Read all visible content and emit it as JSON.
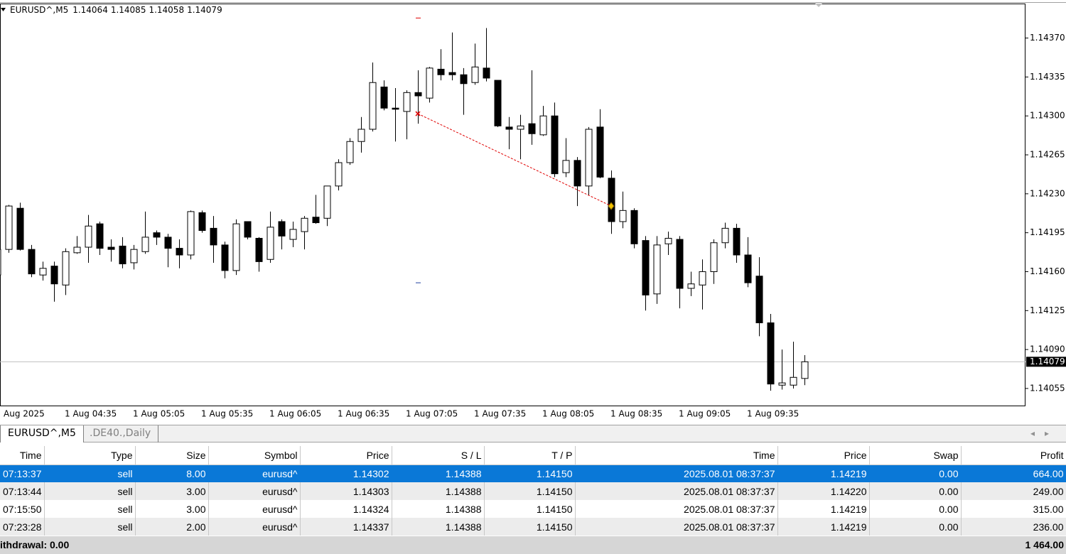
{
  "chart_data": {
    "type": "candlestick",
    "symbol": "EURUSD^,M5",
    "categories": [
      "Aug 2025",
      null,
      null,
      null,
      null,
      null,
      "1 Aug 04:35",
      null,
      null,
      null,
      null,
      null,
      "1 Aug 05:05",
      null,
      null,
      null,
      null,
      null,
      "1 Aug 05:35",
      null,
      null,
      null,
      null,
      null,
      "1 Aug 06:05",
      null,
      null,
      null,
      null,
      null,
      "1 Aug 06:35",
      null,
      null,
      null,
      null,
      null,
      "1 Aug 07:05",
      null,
      null,
      null,
      null,
      null,
      "1 Aug 07:35",
      null,
      null,
      null,
      null,
      null,
      "1 Aug 08:05",
      null,
      null,
      null,
      null,
      null,
      "1 Aug 08:35",
      null,
      null,
      null,
      null,
      null,
      "1 Aug 09:05",
      null,
      null,
      null,
      null,
      null,
      "1 Aug 09:35",
      null,
      null,
      null,
      null,
      null
    ],
    "open": [
      1.14157,
      1.1418,
      1.14217,
      1.1418,
      1.14157,
      1.14165,
      1.14148,
      1.14177,
      1.14182,
      1.14203,
      1.14182,
      1.14183,
      1.14168,
      1.14178,
      1.14195,
      1.14191,
      1.14181,
      1.14175,
      1.14213,
      1.14199,
      1.14184,
      1.14161,
      1.14205,
      1.1419,
      1.14171,
      1.14205,
      1.14189,
      1.14196,
      1.14209,
      1.14208,
      1.14237,
      1.14258,
      1.14277,
      1.14288,
      1.14326,
      1.14307,
      1.14304,
      1.14321,
      1.14316,
      1.14342,
      1.14339,
      1.14337,
      1.1433,
      1.14343,
      1.14332,
      1.1429,
      1.14288,
      1.14293,
      1.14283,
      1.143,
      1.14249,
      1.1426,
      1.14237,
      1.1429,
      1.14244,
      1.14205,
      1.14215,
      1.14188,
      1.1414,
      1.14185,
      1.14189,
      1.14145,
      1.14148,
      1.1416,
      1.14186,
      1.14199,
      1.14175,
      1.14156,
      1.14114,
      1.14058,
      1.14058,
      1.14064
    ],
    "high": [
      1.14182,
      1.1422,
      1.14222,
      1.14184,
      1.14169,
      1.14169,
      1.14181,
      1.14192,
      1.14211,
      1.14205,
      1.14189,
      1.14191,
      1.14184,
      1.14214,
      1.14197,
      1.14194,
      1.14189,
      1.14215,
      1.14215,
      1.1421,
      1.14187,
      1.14207,
      1.14205,
      1.14191,
      1.14214,
      1.14207,
      1.14205,
      1.1421,
      1.14229,
      1.14237,
      1.14261,
      1.1428,
      1.14299,
      1.14348,
      1.14332,
      1.14325,
      1.14323,
      1.14341,
      1.14344,
      1.1436,
      1.14375,
      1.14343,
      1.14365,
      1.14379,
      1.14332,
      1.14299,
      1.14301,
      1.14341,
      1.14309,
      1.14312,
      1.1428,
      1.14263,
      1.1429,
      1.14306,
      1.14251,
      1.14232,
      1.14217,
      1.14192,
      1.14192,
      1.14196,
      1.14192,
      1.1416,
      1.14171,
      1.14189,
      1.14204,
      1.14203,
      1.14191,
      1.14173,
      1.14122,
      1.1409,
      1.14097,
      1.14085
    ],
    "low": [
      1.14155,
      1.14177,
      1.14179,
      1.14155,
      1.14152,
      1.14133,
      1.14139,
      1.14176,
      1.14168,
      1.14175,
      1.14169,
      1.14163,
      1.14162,
      1.14176,
      1.14184,
      1.14164,
      1.14163,
      1.14171,
      1.14195,
      1.14168,
      1.14154,
      1.14157,
      1.14189,
      1.1416,
      1.14168,
      1.1418,
      1.14182,
      1.1418,
      1.14203,
      1.14201,
      1.14233,
      1.14256,
      1.14267,
      1.14286,
      1.14305,
      1.14277,
      1.14279,
      1.14293,
      1.14312,
      1.14332,
      1.14332,
      1.14301,
      1.14328,
      1.14331,
      1.1429,
      1.1427,
      1.14261,
      1.14274,
      1.14282,
      1.14245,
      1.14245,
      1.14219,
      1.14229,
      1.14244,
      1.14194,
      1.14199,
      1.14181,
      1.14125,
      1.14131,
      1.14175,
      1.14127,
      1.14138,
      1.14126,
      1.14149,
      1.14181,
      1.14168,
      1.14146,
      1.14102,
      1.14053,
      1.14054,
      1.14055,
      1.14058
    ],
    "close": [
      1.1418,
      1.14219,
      1.1418,
      1.14158,
      1.14163,
      1.14149,
      1.14178,
      1.14182,
      1.14201,
      1.14181,
      1.1418,
      1.14167,
      1.1418,
      1.14191,
      1.14191,
      1.14181,
      1.14175,
      1.14214,
      1.14197,
      1.14184,
      1.14161,
      1.14203,
      1.14191,
      1.14169,
      1.142,
      1.14192,
      1.14198,
      1.14208,
      1.14204,
      1.14237,
      1.14258,
      1.14277,
      1.14288,
      1.1433,
      1.14307,
      1.14306,
      1.14321,
      1.14318,
      1.14343,
      1.14337,
      1.14337,
      1.14329,
      1.14344,
      1.14334,
      1.14291,
      1.14288,
      1.14291,
      1.14284,
      1.143,
      1.14248,
      1.1426,
      1.14237,
      1.14288,
      1.14245,
      1.14205,
      1.14215,
      1.14185,
      1.14139,
      1.14184,
      1.1419,
      1.14145,
      1.14149,
      1.1416,
      1.14186,
      1.14199,
      1.14175,
      1.1415,
      1.14114,
      1.14059,
      1.1406,
      1.14065,
      1.14079
    ],
    "ylim": [
      1.14039,
      1.14401
    ],
    "yticks": [
      {
        "value": 1.1437,
        "label": "1.14370"
      },
      {
        "value": 1.14335,
        "label": "1.14335"
      },
      {
        "value": 1.143,
        "label": "1.14300"
      },
      {
        "value": 1.14265,
        "label": "1.14265"
      },
      {
        "value": 1.1423,
        "label": "1.14230"
      },
      {
        "value": 1.14195,
        "label": "1.14195"
      },
      {
        "value": 1.1416,
        "label": "1.14160"
      },
      {
        "value": 1.14125,
        "label": "1.14125"
      },
      {
        "value": 1.1409,
        "label": "1.14090"
      },
      {
        "value": 1.14055,
        "label": "1.14055"
      }
    ]
  },
  "tabs": [
    "EURUSD^,M5",
    ".DE40.,Daily"
  ],
  "table": {
    "header": [
      "Time",
      "Type",
      "Size",
      "Symbol",
      "Price",
      "S / L",
      "T / P",
      "Time",
      "Price",
      "Swap",
      "Profit"
    ],
    "rows": [
      [
        "07:13:37",
        "sell",
        "8.00",
        "eurusd^",
        "1.14302",
        "1.14388",
        "1.14150",
        "2025.08.01 08:37:37",
        "1.14219",
        "0.00",
        "664.00"
      ],
      [
        "07:13:44",
        "sell",
        "3.00",
        "eurusd^",
        "1.14303",
        "1.14388",
        "1.14150",
        "2025.08.01 08:37:37",
        "1.14220",
        "0.00",
        "249.00"
      ],
      [
        "07:15:50",
        "sell",
        "3.00",
        "eurusd^",
        "1.14324",
        "1.14388",
        "1.14150",
        "2025.08.01 08:37:37",
        "1.14219",
        "0.00",
        "315.00"
      ],
      [
        "07:23:28",
        "sell",
        "2.00",
        "eurusd^",
        "1.14337",
        "1.14388",
        "1.14150",
        "2025.08.01 08:37:37",
        "1.14219",
        "0.00",
        "236.00"
      ]
    ],
    "footer": {
      "left": "ithdrawal: 0.00",
      "right": "1 464.00"
    }
  }
}
